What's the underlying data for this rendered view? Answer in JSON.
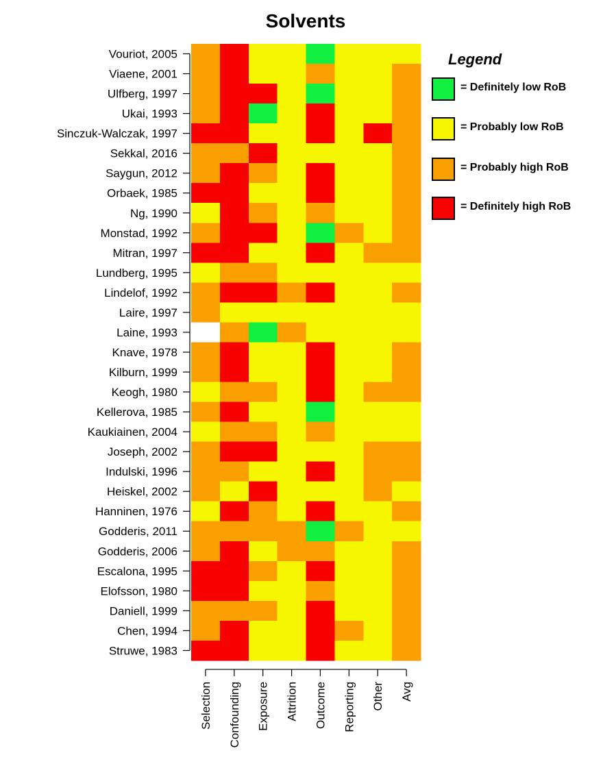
{
  "chart_data": {
    "type": "heatmap",
    "title": "Solvents",
    "columns": [
      "Selection",
      "Confounding",
      "Exposure",
      "Attrition",
      "Outcome",
      "Reporting",
      "Other",
      "Avg"
    ],
    "rows": [
      "Vouriot, 2005",
      "Viaene, 2001",
      "Ulfberg, 1997",
      "Ukai, 1993",
      "Sinczuk-Walczak, 1997",
      "Sekkal, 2016",
      "Saygun, 2012",
      "Orbaek, 1985",
      "Ng, 1990",
      "Monstad, 1992",
      "Mitran, 1997",
      "Lundberg, 1995",
      "Lindelof, 1992",
      "Laire, 1997",
      "Laine, 1993",
      "Knave, 1978",
      "Kilburn, 1999",
      "Keogh, 1980",
      "Kellerova, 1985",
      "Kaukiainen, 2004",
      "Joseph, 2002",
      "Indulski, 1996",
      "Heiskel, 2002",
      "Hanninen, 1976",
      "Godderis, 2011",
      "Godderis, 2006",
      "Escalona, 1995",
      "Elofsson, 1980",
      "Daniell, 1999",
      "Chen, 1994",
      "Struwe, 1983"
    ],
    "categories": [
      "Definitely low RoB",
      "Probably low RoB",
      "Probably high RoB",
      "Definitely high RoB"
    ],
    "cells": [
      [
        "Probably high RoB",
        "Definitely high RoB",
        "Probably low RoB",
        "Probably low RoB",
        "Definitely low RoB",
        "Probably low RoB",
        "Probably low RoB",
        "Probably low RoB"
      ],
      [
        "Probably high RoB",
        "Definitely high RoB",
        "Probably low RoB",
        "Probably low RoB",
        "Probably high RoB",
        "Probably low RoB",
        "Probably low RoB",
        "Probably high RoB"
      ],
      [
        "Probably high RoB",
        "Definitely high RoB",
        "Definitely high RoB",
        "Probably low RoB",
        "Definitely low RoB",
        "Probably low RoB",
        "Probably low RoB",
        "Probably high RoB"
      ],
      [
        "Probably high RoB",
        "Definitely high RoB",
        "Definitely low RoB",
        "Probably low RoB",
        "Definitely high RoB",
        "Probably low RoB",
        "Probably low RoB",
        "Probably high RoB"
      ],
      [
        "Definitely high RoB",
        "Definitely high RoB",
        "Probably low RoB",
        "Probably low RoB",
        "Definitely high RoB",
        "Probably low RoB",
        "Definitely high RoB",
        "Probably high RoB"
      ],
      [
        "Probably high RoB",
        "Probably high RoB",
        "Definitely high RoB",
        "Probably low RoB",
        "Probably low RoB",
        "Probably low RoB",
        "Probably low RoB",
        "Probably high RoB"
      ],
      [
        "Probably high RoB",
        "Definitely high RoB",
        "Probably high RoB",
        "Probably low RoB",
        "Definitely high RoB",
        "Probably low RoB",
        "Probably low RoB",
        "Probably high RoB"
      ],
      [
        "Definitely high RoB",
        "Definitely high RoB",
        "Probably low RoB",
        "Probably low RoB",
        "Definitely high RoB",
        "Probably low RoB",
        "Probably low RoB",
        "Probably high RoB"
      ],
      [
        "Probably low RoB",
        "Definitely high RoB",
        "Probably high RoB",
        "Probably low RoB",
        "Probably high RoB",
        "Probably low RoB",
        "Probably low RoB",
        "Probably high RoB"
      ],
      [
        "Probably high RoB",
        "Definitely high RoB",
        "Definitely high RoB",
        "Probably low RoB",
        "Definitely low RoB",
        "Probably high RoB",
        "Probably low RoB",
        "Probably high RoB"
      ],
      [
        "Definitely high RoB",
        "Definitely high RoB",
        "Probably low RoB",
        "Probably low RoB",
        "Definitely high RoB",
        "Probably low RoB",
        "Probably high RoB",
        "Probably high RoB"
      ],
      [
        "Probably low RoB",
        "Probably high RoB",
        "Probably high RoB",
        "Probably low RoB",
        "Probably low RoB",
        "Probably low RoB",
        "Probably low RoB",
        "Probably low RoB"
      ],
      [
        "Probably high RoB",
        "Definitely high RoB",
        "Definitely high RoB",
        "Probably high RoB",
        "Definitely high RoB",
        "Probably low RoB",
        "Probably low RoB",
        "Probably high RoB"
      ],
      [
        "Probably high RoB",
        "Probably low RoB",
        "Probably low RoB",
        "Probably low RoB",
        "Probably low RoB",
        "Probably low RoB",
        "Probably low RoB",
        "Probably low RoB"
      ],
      [
        null,
        "Probably high RoB",
        "Definitely low RoB",
        "Probably high RoB",
        "Probably low RoB",
        "Probably low RoB",
        "Probably low RoB",
        "Probably low RoB"
      ],
      [
        "Probably high RoB",
        "Definitely high RoB",
        "Probably low RoB",
        "Probably low RoB",
        "Definitely high RoB",
        "Probably low RoB",
        "Probably low RoB",
        "Probably high RoB"
      ],
      [
        "Probably high RoB",
        "Definitely high RoB",
        "Probably low RoB",
        "Probably low RoB",
        "Definitely high RoB",
        "Probably low RoB",
        "Probably low RoB",
        "Probably high RoB"
      ],
      [
        "Probably low RoB",
        "Probably high RoB",
        "Probably high RoB",
        "Probably low RoB",
        "Definitely high RoB",
        "Probably low RoB",
        "Probably high RoB",
        "Probably high RoB"
      ],
      [
        "Probably high RoB",
        "Definitely high RoB",
        "Probably low RoB",
        "Probably low RoB",
        "Definitely low RoB",
        "Probably low RoB",
        "Probably low RoB",
        "Probably low RoB"
      ],
      [
        "Probably low RoB",
        "Probably high RoB",
        "Probably high RoB",
        "Probably low RoB",
        "Probably high RoB",
        "Probably low RoB",
        "Probably low RoB",
        "Probably low RoB"
      ],
      [
        "Probably high RoB",
        "Definitely high RoB",
        "Definitely high RoB",
        "Probably low RoB",
        "Probably low RoB",
        "Probably low RoB",
        "Probably high RoB",
        "Probably high RoB"
      ],
      [
        "Probably high RoB",
        "Probably high RoB",
        "Probably low RoB",
        "Probably low RoB",
        "Definitely high RoB",
        "Probably low RoB",
        "Probably high RoB",
        "Probably high RoB"
      ],
      [
        "Probably high RoB",
        "Probably low RoB",
        "Definitely high RoB",
        "Probably low RoB",
        "Probably low RoB",
        "Probably low RoB",
        "Probably high RoB",
        "Probably low RoB"
      ],
      [
        "Probably low RoB",
        "Definitely high RoB",
        "Probably high RoB",
        "Probably low RoB",
        "Definitely high RoB",
        "Probably low RoB",
        "Probably low RoB",
        "Probably high RoB"
      ],
      [
        "Probably high RoB",
        "Probably high RoB",
        "Probably high RoB",
        "Probably high RoB",
        "Definitely low RoB",
        "Probably high RoB",
        "Probably low RoB",
        "Probably low RoB"
      ],
      [
        "Probably high RoB",
        "Definitely high RoB",
        "Probably low RoB",
        "Probably high RoB",
        "Probably high RoB",
        "Probably low RoB",
        "Probably low RoB",
        "Probably high RoB"
      ],
      [
        "Definitely high RoB",
        "Definitely high RoB",
        "Probably high RoB",
        "Probably low RoB",
        "Definitely high RoB",
        "Probably low RoB",
        "Probably low RoB",
        "Probably high RoB"
      ],
      [
        "Definitely high RoB",
        "Definitely high RoB",
        "Probably low RoB",
        "Probably low RoB",
        "Probably high RoB",
        "Probably low RoB",
        "Probably low RoB",
        "Probably high RoB"
      ],
      [
        "Probably high RoB",
        "Probably high RoB",
        "Probably high RoB",
        "Probably low RoB",
        "Definitely high RoB",
        "Probably low RoB",
        "Probably low RoB",
        "Probably high RoB"
      ],
      [
        "Probably high RoB",
        "Definitely high RoB",
        "Probably low RoB",
        "Probably low RoB",
        "Definitely high RoB",
        "Probably high RoB",
        "Probably low RoB",
        "Probably high RoB"
      ],
      [
        "Definitely high RoB",
        "Definitely high RoB",
        "Probably low RoB",
        "Probably low RoB",
        "Definitely high RoB",
        "Probably low RoB",
        "Probably low RoB",
        "Probably high RoB"
      ]
    ],
    "missing_color": "#ffffff",
    "legend": {
      "title": "Legend",
      "placement": "right",
      "items": [
        {
          "label": "= Definitely low RoB",
          "color": "#11f040"
        },
        {
          "label": "= Probably low RoB",
          "color": "#f6f600"
        },
        {
          "label": "= Probably high RoB",
          "color": "#f9a000"
        },
        {
          "label": "= Definitely high RoB",
          "color": "#f70000"
        }
      ]
    },
    "colors": {
      "Definitely low RoB": "#11f040",
      "Probably low RoB": "#f6f600",
      "Probably high RoB": "#f9a000",
      "Definitely high RoB": "#f70000"
    }
  }
}
